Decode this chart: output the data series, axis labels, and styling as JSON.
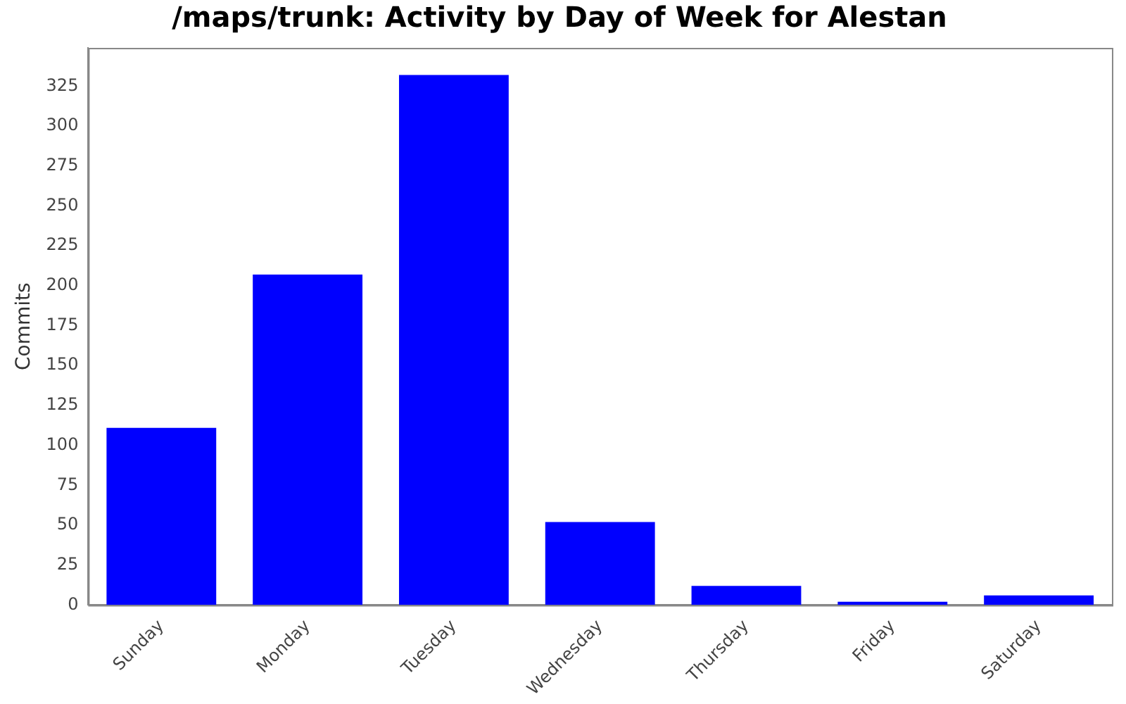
{
  "chart_data": {
    "type": "bar",
    "title": "/maps/trunk: Activity by Day of Week for Alestan",
    "ylabel": "Commits",
    "categories": [
      "Sunday",
      "Monday",
      "Tuesday",
      "Wednesday",
      "Thursday",
      "Friday",
      "Saturday"
    ],
    "values": [
      111,
      207,
      332,
      52,
      12,
      2,
      6
    ],
    "color": "#0000ff",
    "ylim": [
      0,
      349
    ],
    "yticks": [
      0,
      25,
      50,
      75,
      100,
      125,
      150,
      175,
      200,
      225,
      250,
      275,
      300,
      325
    ],
    "grid": false,
    "legend": false
  }
}
